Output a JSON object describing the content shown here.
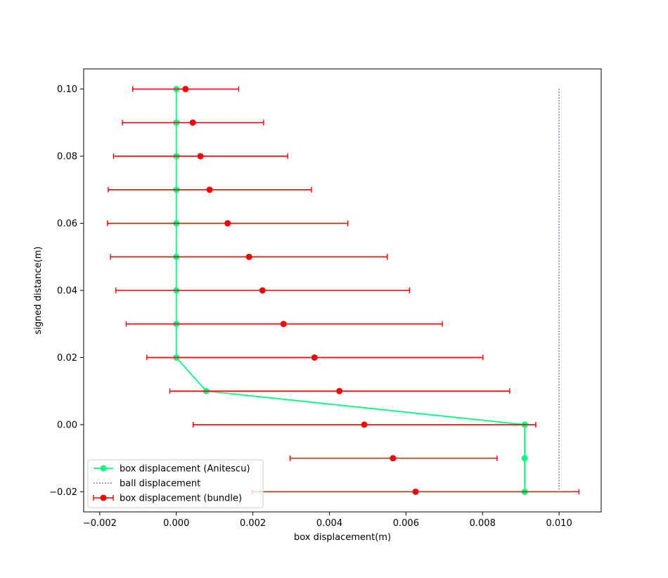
{
  "chart_data": {
    "type": "scatter",
    "title": "",
    "xlabel": "box displacement(m)",
    "ylabel": "signed distance(m)",
    "xlim": [
      -0.00242,
      0.0111
    ],
    "ylim": [
      -0.026,
      0.106
    ],
    "xticks": [
      -0.002,
      0.0,
      0.002,
      0.004,
      0.006,
      0.008,
      0.01
    ],
    "xtick_labels": [
      "−0.002",
      "0.000",
      "0.002",
      "0.004",
      "0.006",
      "0.008",
      "0.010"
    ],
    "yticks": [
      -0.02,
      0.0,
      0.02,
      0.04,
      0.06,
      0.08,
      0.1
    ],
    "ytick_labels": [
      "−0.02",
      "0.00",
      "0.02",
      "0.04",
      "0.06",
      "0.08",
      "0.10"
    ],
    "legend_position": "lower-left",
    "series": [
      {
        "name": "box displacement (Anitescu)",
        "style": "line-marker",
        "color": "#00ff7f",
        "points": [
          [
            0.0,
            0.1
          ],
          [
            0.0,
            0.09
          ],
          [
            0.0,
            0.08
          ],
          [
            0.0,
            0.07
          ],
          [
            0.0,
            0.06
          ],
          [
            0.0,
            0.05
          ],
          [
            0.0,
            0.04
          ],
          [
            0.0,
            0.03
          ],
          [
            0.0,
            0.02
          ],
          [
            0.00078,
            0.01
          ],
          [
            0.0091,
            0.0
          ],
          [
            0.0091,
            -0.01
          ],
          [
            0.0091,
            -0.02
          ]
        ]
      },
      {
        "name": "ball displacement",
        "style": "dotted",
        "color": "#4169e1",
        "points": [
          [
            0.01,
            0.1
          ],
          [
            0.01,
            -0.02
          ]
        ]
      },
      {
        "name": "box displacement (bundle)",
        "style": "errorbar",
        "color": "#ff0000",
        "points": [
          {
            "x": 0.00024,
            "y": 0.1,
            "xmin": -0.00114,
            "xmax": 0.00163
          },
          {
            "x": 0.00043,
            "y": 0.09,
            "xmin": -0.00141,
            "xmax": 0.00228
          },
          {
            "x": 0.00063,
            "y": 0.08,
            "xmin": -0.00164,
            "xmax": 0.00291
          },
          {
            "x": 0.00087,
            "y": 0.07,
            "xmin": -0.00178,
            "xmax": 0.00353
          },
          {
            "x": 0.00134,
            "y": 0.06,
            "xmin": -0.0018,
            "xmax": 0.00448
          },
          {
            "x": 0.0019,
            "y": 0.05,
            "xmin": -0.00172,
            "xmax": 0.00551
          },
          {
            "x": 0.00225,
            "y": 0.04,
            "xmin": -0.00158,
            "xmax": 0.00609
          },
          {
            "x": 0.0028,
            "y": 0.03,
            "xmin": -0.00131,
            "xmax": 0.00695
          },
          {
            "x": 0.00361,
            "y": 0.02,
            "xmin": -0.00077,
            "xmax": 0.00801
          },
          {
            "x": 0.00426,
            "y": 0.01,
            "xmin": -0.00017,
            "xmax": 0.00871
          },
          {
            "x": 0.00491,
            "y": 0.0,
            "xmin": 0.00044,
            "xmax": 0.00939
          },
          {
            "x": 0.00566,
            "y": -0.01,
            "xmin": 0.00297,
            "xmax": 0.00838
          },
          {
            "x": 0.00625,
            "y": -0.02,
            "xmin": 0.00198,
            "xmax": 0.01052
          }
        ]
      }
    ]
  }
}
